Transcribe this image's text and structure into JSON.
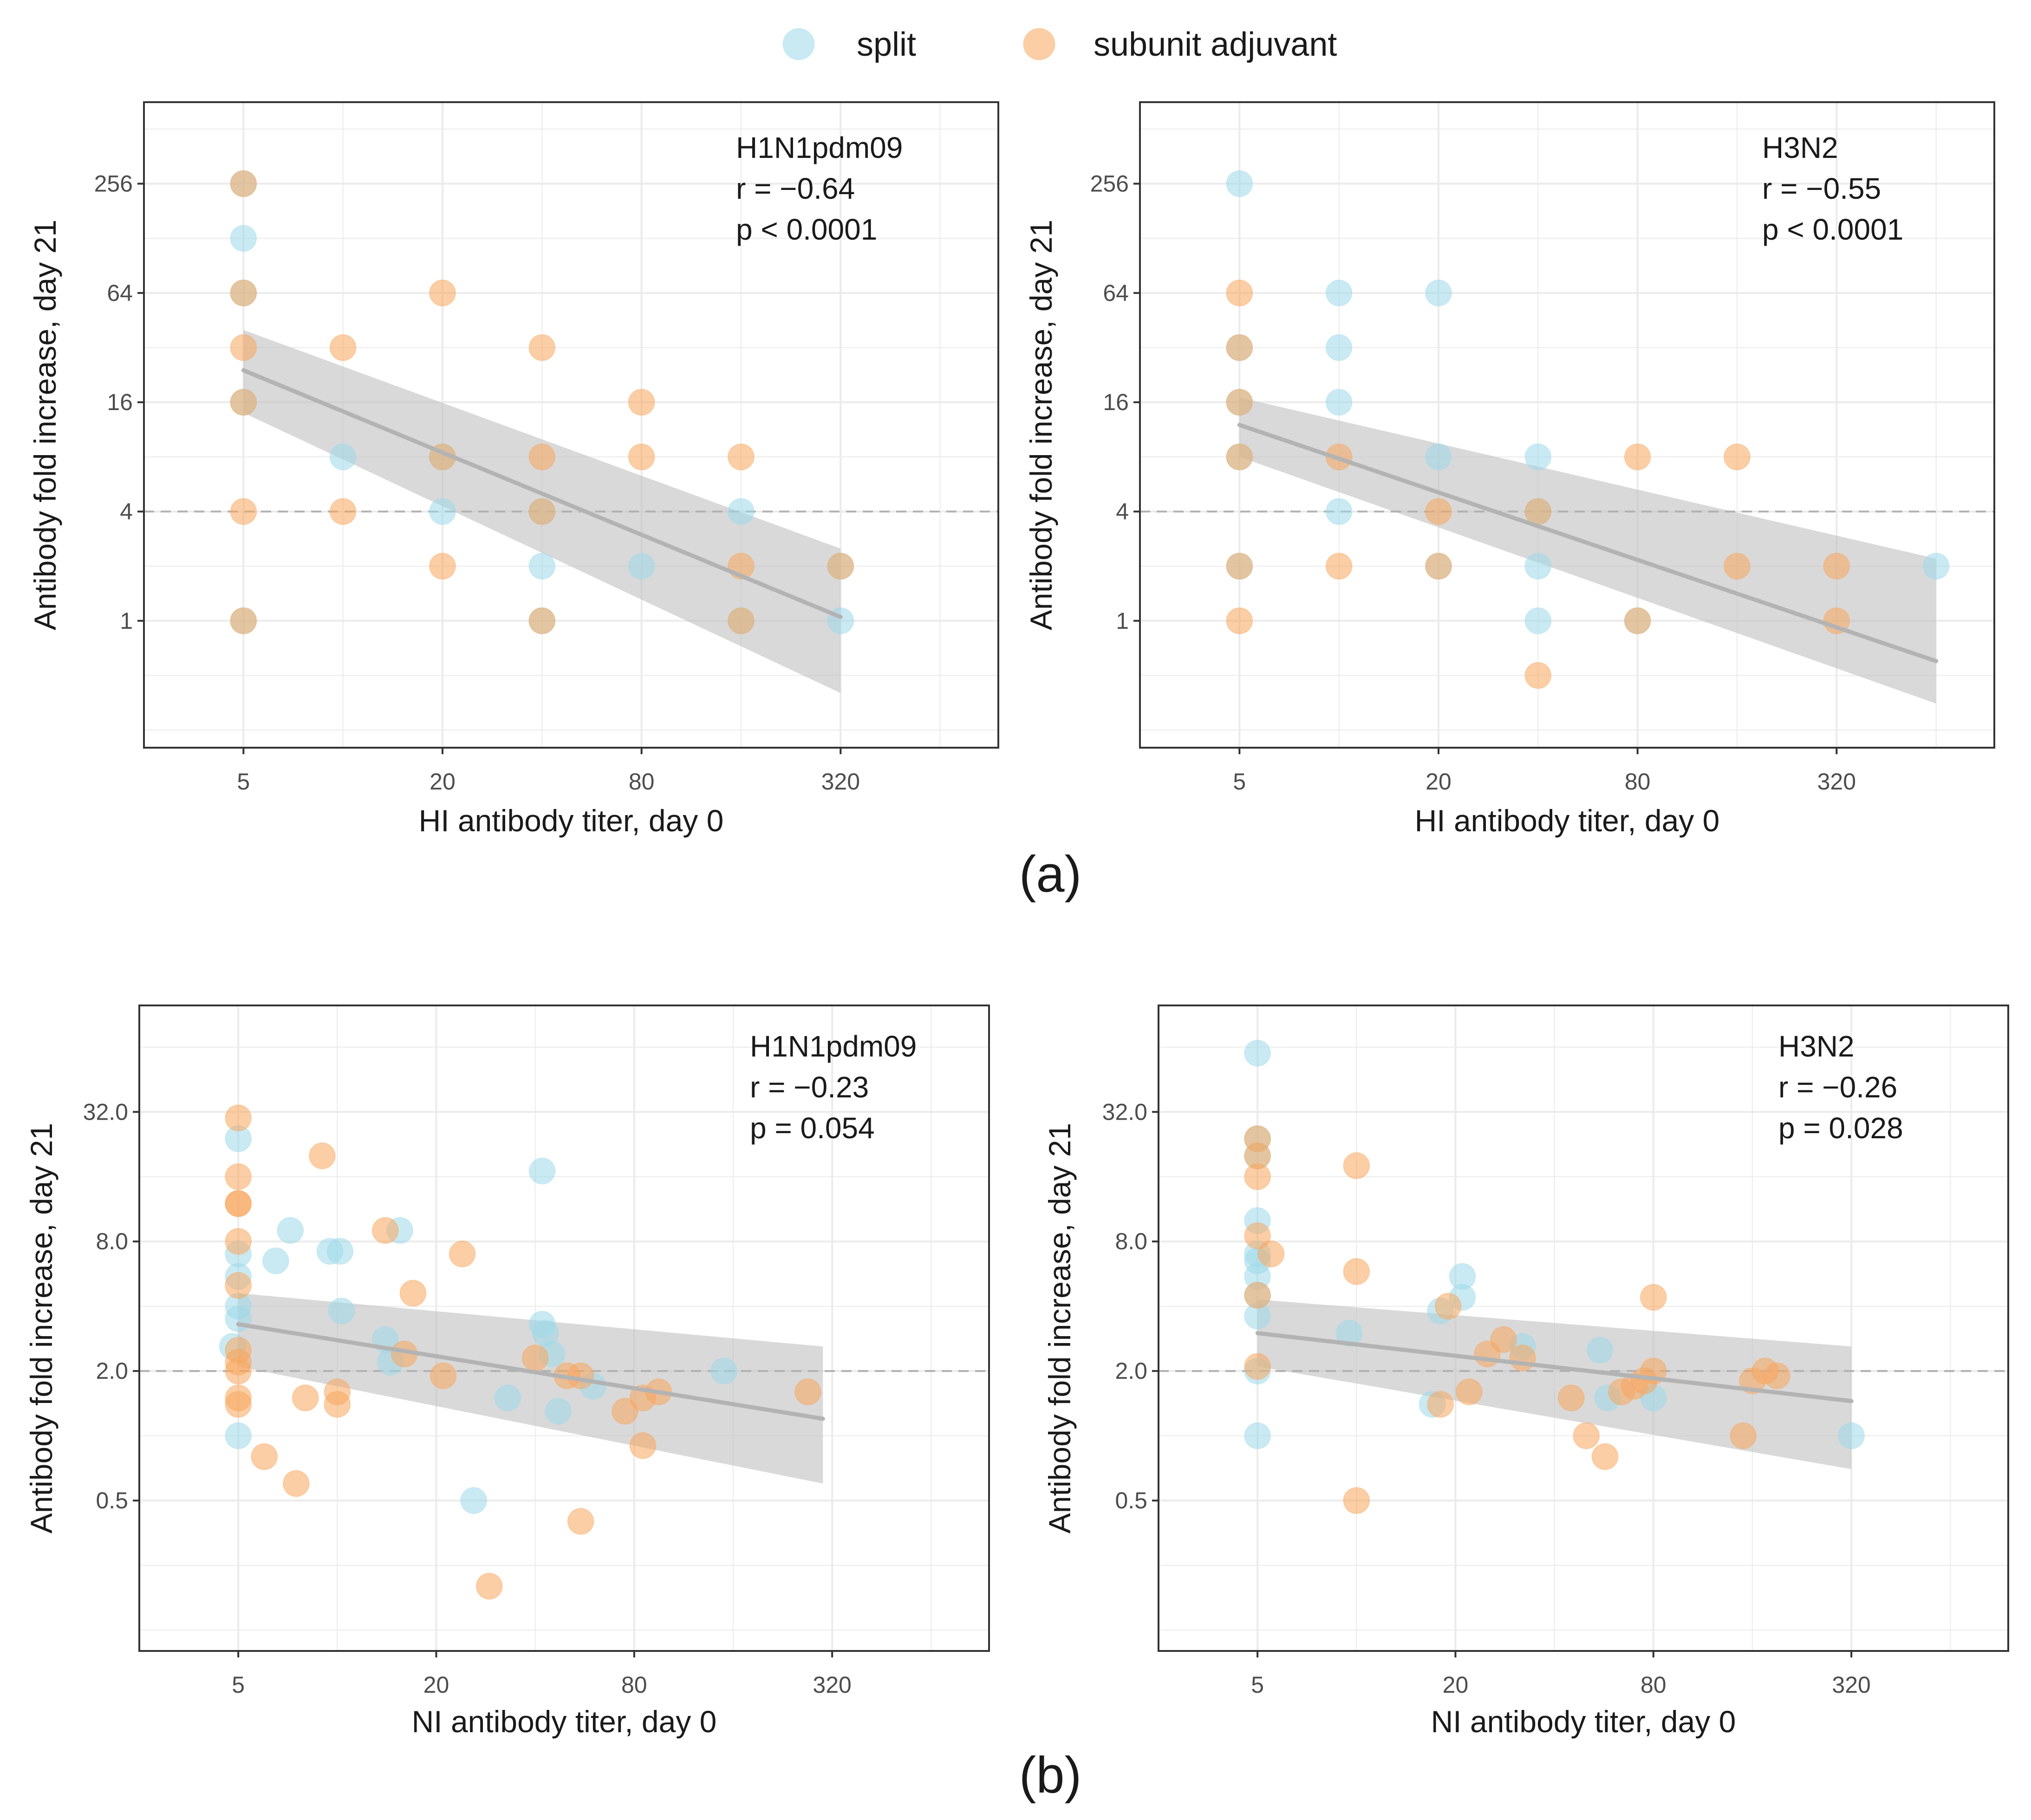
{
  "legend": {
    "items": [
      {
        "label": "split",
        "color": "#9fd9ea"
      },
      {
        "label": "subunit adjuvant",
        "color": "#f8a55c"
      }
    ]
  },
  "colors": {
    "split": "#9fd9ea",
    "subunit_adjuvant": "#f8a55c",
    "fit_line": "#b3b3b3",
    "ribbon": "#bfbfbf",
    "reference_line": "#b0b0b0"
  },
  "figure_labels": {
    "a": "(a)",
    "b": "(b)"
  },
  "chart_data": [
    {
      "id": "a-left",
      "type": "scatter",
      "xlabel": "HI antibody titer, day 0",
      "ylabel": "Antibody fold increase, day 21",
      "x_scale": "log2",
      "y_scale": "log2",
      "xlim": [
        2.5,
        960
      ],
      "ylim": [
        0.2,
        720
      ],
      "x_ticks": [
        5,
        20,
        80,
        320
      ],
      "x_tick_labels": [
        "5",
        "20",
        "80",
        "320"
      ],
      "y_ticks": [
        1,
        4,
        16,
        64,
        256
      ],
      "y_tick_labels": [
        "1",
        "4",
        "16",
        "64",
        "256"
      ],
      "reference_line_y": 4,
      "annotation": [
        "H1N1pdm09",
        "r = −0.64",
        "p < 0.0001"
      ],
      "fit": {
        "x": [
          5,
          320
        ],
        "y": [
          24,
          1.05
        ],
        "ci_low": [
          14,
          0.4
        ],
        "ci_high": [
          40,
          2.5
        ]
      },
      "series": [
        {
          "name": "split",
          "points": [
            [
              5,
              256
            ],
            [
              5,
              128
            ],
            [
              5,
              64
            ],
            [
              5,
              16
            ],
            [
              5,
              1
            ],
            [
              10,
              8
            ],
            [
              20,
              8
            ],
            [
              20,
              4
            ],
            [
              40,
              2
            ],
            [
              40,
              1
            ],
            [
              40,
              4
            ],
            [
              80,
              2
            ],
            [
              160,
              4
            ],
            [
              160,
              1
            ],
            [
              320,
              2
            ],
            [
              320,
              1
            ]
          ]
        },
        {
          "name": "subunit adjuvant",
          "points": [
            [
              5,
              256
            ],
            [
              5,
              64
            ],
            [
              5,
              32
            ],
            [
              5,
              16
            ],
            [
              5,
              4
            ],
            [
              5,
              1
            ],
            [
              10,
              32
            ],
            [
              10,
              4
            ],
            [
              20,
              64
            ],
            [
              20,
              2
            ],
            [
              20,
              8
            ],
            [
              40,
              32
            ],
            [
              40,
              8
            ],
            [
              40,
              4
            ],
            [
              40,
              1
            ],
            [
              80,
              16
            ],
            [
              80,
              8
            ],
            [
              160,
              8
            ],
            [
              160,
              2
            ],
            [
              160,
              1
            ],
            [
              320,
              2
            ]
          ]
        }
      ]
    },
    {
      "id": "a-right",
      "type": "scatter",
      "xlabel": "HI antibody titer, day 0",
      "ylabel": "Antibody fold increase, day 21",
      "x_scale": "log2",
      "y_scale": "log2",
      "xlim": [
        2.5,
        960
      ],
      "ylim": [
        0.2,
        720
      ],
      "x_ticks": [
        5,
        20,
        80,
        320
      ],
      "x_tick_labels": [
        "5",
        "20",
        "80",
        "320"
      ],
      "y_ticks": [
        1,
        4,
        16,
        64,
        256
      ],
      "y_tick_labels": [
        "1",
        "4",
        "16",
        "64",
        "256"
      ],
      "reference_line_y": 4,
      "annotation": [
        "H3N2",
        "r = −0.55",
        "p < 0.0001"
      ],
      "fit": {
        "x": [
          5,
          640
        ],
        "y": [
          12,
          0.6
        ],
        "ci_low": [
          8,
          0.35
        ],
        "ci_high": [
          17,
          2.2
        ]
      },
      "series": [
        {
          "name": "split",
          "points": [
            [
              5,
              256
            ],
            [
              5,
              32
            ],
            [
              5,
              16
            ],
            [
              5,
              8
            ],
            [
              5,
              2
            ],
            [
              10,
              64
            ],
            [
              10,
              32
            ],
            [
              10,
              16
            ],
            [
              10,
              4
            ],
            [
              20,
              64
            ],
            [
              20,
              8
            ],
            [
              20,
              2
            ],
            [
              40,
              8
            ],
            [
              40,
              4
            ],
            [
              40,
              2
            ],
            [
              40,
              1
            ],
            [
              80,
              1
            ],
            [
              640,
              2
            ]
          ]
        },
        {
          "name": "subunit adjuvant",
          "points": [
            [
              5,
              64
            ],
            [
              5,
              32
            ],
            [
              5,
              16
            ],
            [
              5,
              8
            ],
            [
              5,
              2
            ],
            [
              5,
              1
            ],
            [
              10,
              8
            ],
            [
              10,
              2
            ],
            [
              20,
              4
            ],
            [
              20,
              2
            ],
            [
              40,
              0.5
            ],
            [
              40,
              4
            ],
            [
              80,
              8
            ],
            [
              80,
              1
            ],
            [
              160,
              8
            ],
            [
              160,
              2
            ],
            [
              320,
              2
            ],
            [
              320,
              1
            ]
          ]
        }
      ]
    },
    {
      "id": "b-left",
      "type": "scatter",
      "xlabel": "NI  antibody titer, day 0",
      "ylabel": "Antibody fold increase, day 21",
      "x_scale": "log2",
      "y_scale": "log2",
      "xlim": [
        2.5,
        960
      ],
      "ylim": [
        0.1,
        100
      ],
      "x_ticks": [
        5,
        20,
        80,
        320
      ],
      "x_tick_labels": [
        "5",
        "20",
        "80",
        "320"
      ],
      "y_ticks": [
        0.5,
        2,
        8,
        32
      ],
      "y_tick_labels": [
        "0.5",
        "2.0",
        "8.0",
        "32.0"
      ],
      "reference_line_y": 2,
      "annotation": [
        "H1N1pdm09",
        "r = −0.23",
        "p = 0.054"
      ],
      "fit": {
        "x": [
          5,
          300
        ],
        "y": [
          3.3,
          1.2
        ],
        "ci_low": [
          2.1,
          0.6
        ],
        "ci_high": [
          4.6,
          2.6
        ]
      },
      "series": [
        {
          "name": "split",
          "points": [
            [
              5,
              24
            ],
            [
              5,
              7
            ],
            [
              5,
              4
            ],
            [
              5,
              5.5
            ],
            [
              5,
              3.5
            ],
            [
              5,
              1
            ],
            [
              4.8,
              2.6
            ],
            [
              6.5,
              6.5
            ],
            [
              7.2,
              9
            ],
            [
              9.5,
              7.2
            ],
            [
              10.2,
              7.2
            ],
            [
              10.3,
              3.8
            ],
            [
              14,
              2.8
            ],
            [
              14.5,
              2.2
            ],
            [
              15.5,
              9
            ],
            [
              26,
              0.5
            ],
            [
              33,
              1.5
            ],
            [
              42,
              17
            ],
            [
              42,
              3.3
            ],
            [
              43,
              3
            ],
            [
              45,
              2.4
            ],
            [
              47,
              1.3
            ],
            [
              60,
              1.7
            ],
            [
              150,
              2
            ]
          ]
        },
        {
          "name": "subunit adjuvant",
          "points": [
            [
              5,
              30
            ],
            [
              5,
              16
            ],
            [
              5,
              12
            ],
            [
              5,
              12
            ],
            [
              5,
              8
            ],
            [
              5,
              5
            ],
            [
              5,
              2.5
            ],
            [
              5,
              2.2
            ],
            [
              5,
              1.5
            ],
            [
              5,
              1.4
            ],
            [
              5,
              2
            ],
            [
              6,
              0.8
            ],
            [
              7.5,
              0.6
            ],
            [
              8,
              1.5
            ],
            [
              9,
              20
            ],
            [
              10,
              1.4
            ],
            [
              10,
              1.6
            ],
            [
              14,
              9
            ],
            [
              16,
              2.4
            ],
            [
              17,
              4.6
            ],
            [
              21,
              1.9
            ],
            [
              24,
              7
            ],
            [
              29,
              0.2
            ],
            [
              40,
              2.3
            ],
            [
              50,
              1.9
            ],
            [
              55,
              0.4
            ],
            [
              55,
              1.9
            ],
            [
              75,
              1.3
            ],
            [
              85,
              0.9
            ],
            [
              85,
              1.5
            ],
            [
              95,
              1.6
            ],
            [
              270,
              1.6
            ]
          ]
        }
      ]
    },
    {
      "id": "b-right",
      "type": "scatter",
      "xlabel": "NI  antibody titer, day 0",
      "ylabel": "Antibody fold increase, day 21",
      "x_scale": "log2",
      "y_scale": "log2",
      "xlim": [
        2.5,
        960
      ],
      "ylim": [
        0.1,
        100
      ],
      "x_ticks": [
        5,
        20,
        80,
        320
      ],
      "x_tick_labels": [
        "5",
        "20",
        "80",
        "320"
      ],
      "y_ticks": [
        0.5,
        2,
        8,
        32
      ],
      "y_tick_labels": [
        "0.5",
        "2.0",
        "8.0",
        "32.0"
      ],
      "reference_line_y": 2,
      "annotation": [
        "H3N2",
        "r = −0.26",
        "p = 0.028"
      ],
      "fit": {
        "x": [
          5,
          320
        ],
        "y": [
          3.0,
          1.45
        ],
        "ci_low": [
          2.1,
          0.7
        ],
        "ci_high": [
          4.3,
          2.6
        ]
      },
      "series": [
        {
          "name": "split",
          "points": [
            [
              5,
              60
            ],
            [
              5,
              24
            ],
            [
              5,
              20
            ],
            [
              5,
              10
            ],
            [
              5,
              7
            ],
            [
              5,
              6.5
            ],
            [
              5,
              5.5
            ],
            [
              5,
              4.5
            ],
            [
              5,
              3.6
            ],
            [
              5,
              2
            ],
            [
              5,
              1
            ],
            [
              9.5,
              3
            ],
            [
              17,
              1.4
            ],
            [
              18,
              3.8
            ],
            [
              21,
              5.5
            ],
            [
              21,
              4.4
            ],
            [
              32,
              2.6
            ],
            [
              55,
              2.5
            ],
            [
              58,
              1.5
            ],
            [
              80,
              1.5
            ],
            [
              320,
              1
            ]
          ]
        },
        {
          "name": "subunit adjuvant",
          "points": [
            [
              5,
              24
            ],
            [
              5,
              20
            ],
            [
              5,
              16
            ],
            [
              5,
              8.5
            ],
            [
              5,
              4.5
            ],
            [
              5,
              2.1
            ],
            [
              5.5,
              7
            ],
            [
              10,
              18
            ],
            [
              10,
              5.8
            ],
            [
              10,
              0.5
            ],
            [
              18,
              1.4
            ],
            [
              19,
              4
            ],
            [
              22,
              1.6
            ],
            [
              25,
              2.4
            ],
            [
              28,
              2.8
            ],
            [
              32,
              2.3
            ],
            [
              45,
              1.5
            ],
            [
              50,
              1
            ],
            [
              57,
              0.8
            ],
            [
              64,
              1.6
            ],
            [
              70,
              1.7
            ],
            [
              75,
              1.8
            ],
            [
              80,
              4.4
            ],
            [
              80,
              2
            ],
            [
              150,
              1
            ],
            [
              160,
              1.8
            ],
            [
              175,
              2
            ],
            [
              190,
              1.9
            ]
          ]
        }
      ]
    }
  ]
}
